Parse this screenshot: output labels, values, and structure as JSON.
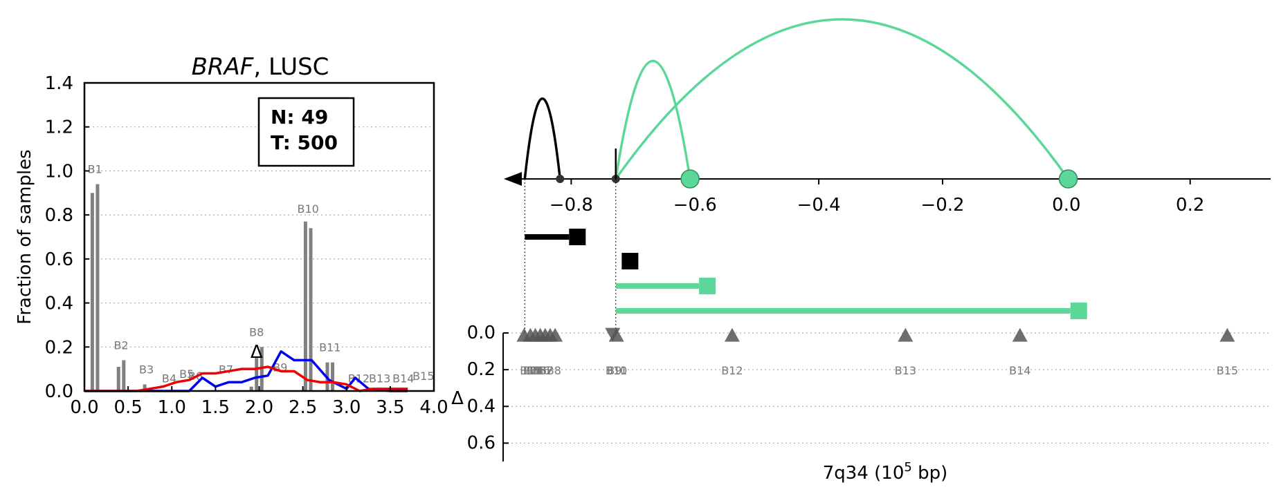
{
  "chart_data": [
    {
      "type": "bar",
      "title_gene": "BRAF",
      "title_rest": ", LUSC",
      "ylabel": "Fraction of samples",
      "xlim": [
        0,
        4
      ],
      "ylim": [
        0,
        1.4
      ],
      "x_ticks": [
        "0.0",
        "0.5",
        "1.0",
        "1.5",
        "2.0",
        "2.5",
        "3.0",
        "3.5",
        "4.0"
      ],
      "y_ticks": [
        "0.0",
        "0.2",
        "0.4",
        "0.6",
        "0.8",
        "1.0",
        "1.2",
        "1.4"
      ],
      "grid": "y-dotted",
      "legend_box": {
        "n_label": "N: 49",
        "t_label": "T: 500"
      },
      "marker_label": "Δ",
      "marker_x": 1.97,
      "bars": [
        {
          "x": 0.09,
          "value": 0.9
        },
        {
          "x": 0.15,
          "value": 0.94
        },
        {
          "x": 0.39,
          "value": 0.11
        },
        {
          "x": 0.45,
          "value": 0.14
        },
        {
          "x": 0.69,
          "value": 0.03
        },
        {
          "x": 1.91,
          "value": 0.02
        },
        {
          "x": 1.97,
          "value": 0.15
        },
        {
          "x": 2.03,
          "value": 0.2
        },
        {
          "x": 2.53,
          "value": 0.77
        },
        {
          "x": 2.59,
          "value": 0.74
        },
        {
          "x": 2.78,
          "value": 0.13
        },
        {
          "x": 2.84,
          "value": 0.13
        }
      ],
      "bar_labels": [
        {
          "text": "B1",
          "x": 0.12,
          "y": 0.99
        },
        {
          "text": "B2",
          "x": 0.42,
          "y": 0.19
        },
        {
          "text": "B3",
          "x": 0.71,
          "y": 0.08
        },
        {
          "text": "B4",
          "x": 0.97,
          "y": 0.04
        },
        {
          "text": "B5",
          "x": 1.17,
          "y": 0.06
        },
        {
          "text": "B6",
          "x": 1.27,
          "y": 0.05
        },
        {
          "text": "B7",
          "x": 1.62,
          "y": 0.08
        },
        {
          "text": "B8",
          "x": 1.97,
          "y": 0.25
        },
        {
          "text": "B9",
          "x": 2.24,
          "y": 0.09
        },
        {
          "text": "B10",
          "x": 2.56,
          "y": 0.81
        },
        {
          "text": "B11",
          "x": 2.81,
          "y": 0.18
        },
        {
          "text": "B12",
          "x": 3.14,
          "y": 0.04
        },
        {
          "text": "B13",
          "x": 3.38,
          "y": 0.04
        },
        {
          "text": "B14",
          "x": 3.65,
          "y": 0.04
        },
        {
          "text": "B15",
          "x": 3.88,
          "y": 0.05
        }
      ],
      "series": [
        {
          "color": "#0000ee",
          "x": [
            0.0,
            0.75,
            1.0,
            1.2,
            1.35,
            1.5,
            1.65,
            1.8,
            1.95,
            2.1,
            2.25,
            2.4,
            2.6,
            2.8,
            3.0,
            3.1,
            3.25,
            3.5,
            3.7
          ],
          "y": [
            0.0,
            0.0,
            0.0,
            0.0,
            0.06,
            0.02,
            0.04,
            0.04,
            0.06,
            0.07,
            0.18,
            0.14,
            0.14,
            0.05,
            0.01,
            0.06,
            0.01,
            0.0,
            0.0
          ]
        },
        {
          "color": "#ee0000",
          "x": [
            0.0,
            0.6,
            0.75,
            0.9,
            1.05,
            1.2,
            1.35,
            1.5,
            1.65,
            1.8,
            1.95,
            2.1,
            2.25,
            2.4,
            2.55,
            2.7,
            2.85,
            3.0,
            3.15,
            3.3,
            3.45,
            3.6,
            3.7
          ],
          "y": [
            0.0,
            0.0,
            0.01,
            0.02,
            0.04,
            0.05,
            0.08,
            0.08,
            0.09,
            0.1,
            0.1,
            0.11,
            0.09,
            0.09,
            0.05,
            0.04,
            0.04,
            0.03,
            0.0,
            0.01,
            0.01,
            0.01,
            0.01
          ]
        }
      ]
    },
    {
      "type": "arc-track",
      "xlabel_main": "7q34 (10",
      "xlabel_exp": "5",
      "xlabel_tail": " bp)",
      "xlim": [
        -0.91,
        0.33
      ],
      "x_ticks": [
        "−0.8",
        "−0.6",
        "−0.4",
        "−0.2",
        "0.0",
        "0.2"
      ],
      "x_tick_values": [
        -0.8,
        -0.6,
        -0.4,
        -0.2,
        0.0,
        0.2
      ],
      "arcs": [
        {
          "from": -0.875,
          "to": -0.818,
          "height": 0.83,
          "color": "#000000"
        },
        {
          "from": -0.728,
          "to": -0.608,
          "height": 1.22,
          "color": "#5bd899"
        },
        {
          "from": -0.728,
          "to": 0.003,
          "height": 1.65,
          "color": "#5bd899"
        }
      ],
      "points": [
        {
          "x": -0.818,
          "kind": "small",
          "color": "#333333"
        },
        {
          "x": -0.728,
          "kind": "small",
          "color": "#333333"
        },
        {
          "x": -0.608,
          "kind": "big",
          "color": "#5bd899"
        },
        {
          "x": 0.003,
          "kind": "big",
          "color": "#5bd899"
        }
      ],
      "tick_mark_x": -0.728,
      "transcripts": [
        {
          "from": -0.875,
          "to": -0.79,
          "color": "#000000",
          "row": 0
        },
        {
          "from": -0.72,
          "to": -0.705,
          "color": "#000000",
          "row": 1
        },
        {
          "from": -0.728,
          "to": -0.58,
          "color": "#5bd899",
          "row": 2
        },
        {
          "from": -0.728,
          "to": 0.02,
          "color": "#5bd899",
          "row": 3
        }
      ],
      "dotted_guides_x": [
        -0.875,
        -0.728
      ]
    },
    {
      "type": "scatter",
      "ylabel": "Δ",
      "ylim": [
        0,
        0.7
      ],
      "y_ticks": [
        "0.0",
        "0.2",
        "0.4",
        "0.6"
      ],
      "grid": "y-dotted",
      "markers": [
        {
          "x": -0.876,
          "dir": "up"
        },
        {
          "x": -0.866,
          "dir": "up"
        },
        {
          "x": -0.858,
          "dir": "up"
        },
        {
          "x": -0.85,
          "dir": "up"
        },
        {
          "x": -0.842,
          "dir": "up"
        },
        {
          "x": -0.834,
          "dir": "up"
        },
        {
          "x": -0.826,
          "dir": "up"
        },
        {
          "x": -0.733,
          "dir": "down"
        },
        {
          "x": -0.727,
          "dir": "up"
        },
        {
          "x": -0.54,
          "dir": "up"
        },
        {
          "x": -0.26,
          "dir": "up"
        },
        {
          "x": -0.075,
          "dir": "up"
        },
        {
          "x": 0.26,
          "dir": "up"
        }
      ],
      "labels": [
        {
          "text": "B1",
          "x": -0.871
        },
        {
          "text": "B2",
          "x": -0.866
        },
        {
          "text": "B3",
          "x": -0.861
        },
        {
          "text": "B4",
          "x": -0.856
        },
        {
          "text": "B5",
          "x": -0.851
        },
        {
          "text": "B6",
          "x": -0.846
        },
        {
          "text": "B7",
          "x": -0.841
        },
        {
          "text": "B8",
          "x": -0.828
        },
        {
          "text": "B9",
          "x": -0.73
        },
        {
          "text": "B10",
          "x": -0.727
        },
        {
          "text": "B11",
          "x": -0.727
        },
        {
          "text": "B12",
          "x": -0.54
        },
        {
          "text": "B13",
          "x": -0.26
        },
        {
          "text": "B14",
          "x": -0.075
        },
        {
          "text": "B15",
          "x": 0.26
        }
      ]
    }
  ]
}
